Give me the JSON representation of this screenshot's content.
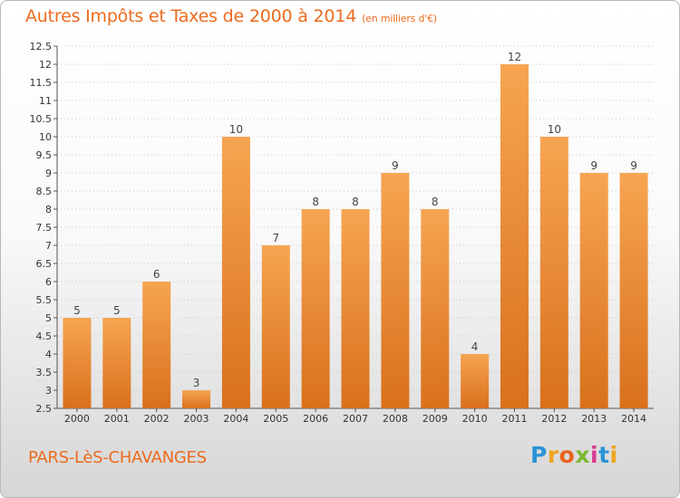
{
  "header": {
    "title": "Autres Impôts et Taxes de 2000 à 2014",
    "unit": "(en milliers d'€)"
  },
  "footer": {
    "place": "PARS-LèS-CHAVANGES",
    "logo_letters": [
      "P",
      "r",
      "o",
      "x",
      "i",
      "t",
      "i"
    ],
    "logo_colors": [
      "#2a93d5",
      "#f0a31c",
      "#e8641c",
      "#7cb82f",
      "#d83c8f",
      "#2a93d5",
      "#f0a31c"
    ]
  },
  "colors": {
    "bar_top": "#f6a552",
    "bar_bottom": "#d9701c",
    "axis_text": "#333333",
    "grid": "#c8c8c8"
  },
  "chart_data": {
    "type": "bar",
    "categories": [
      "2000",
      "2001",
      "2002",
      "2003",
      "2004",
      "2005",
      "2006",
      "2007",
      "2008",
      "2009",
      "2010",
      "2011",
      "2012",
      "2013",
      "2014"
    ],
    "values": [
      5,
      5,
      6,
      3,
      10,
      7,
      8,
      8,
      9,
      8,
      4,
      12,
      10,
      9,
      9
    ],
    "data_labels": [
      "5",
      "5",
      "6",
      "3",
      "10",
      "7",
      "8",
      "8",
      "9",
      "8",
      "4",
      "12",
      "10",
      "9",
      "9"
    ],
    "title": "Autres Impôts et Taxes de 2000 à 2014",
    "ylim": [
      2.5,
      12.5
    ],
    "yticks": [
      2.5,
      3,
      3.5,
      4,
      4.5,
      5,
      5.5,
      6,
      6.5,
      7,
      7.5,
      8,
      8.5,
      9,
      9.5,
      10,
      10.5,
      11,
      11.5,
      12,
      12.5
    ],
    "ytick_labels": [
      "2.5",
      "3",
      "3.5",
      "4",
      "4.5",
      "5",
      "5.5",
      "6",
      "6.5",
      "7",
      "7.5",
      "8",
      "8.5",
      "9",
      "9.5",
      "10",
      "10.5",
      "11",
      "11.5",
      "12",
      "12.5"
    ],
    "grid": true
  }
}
